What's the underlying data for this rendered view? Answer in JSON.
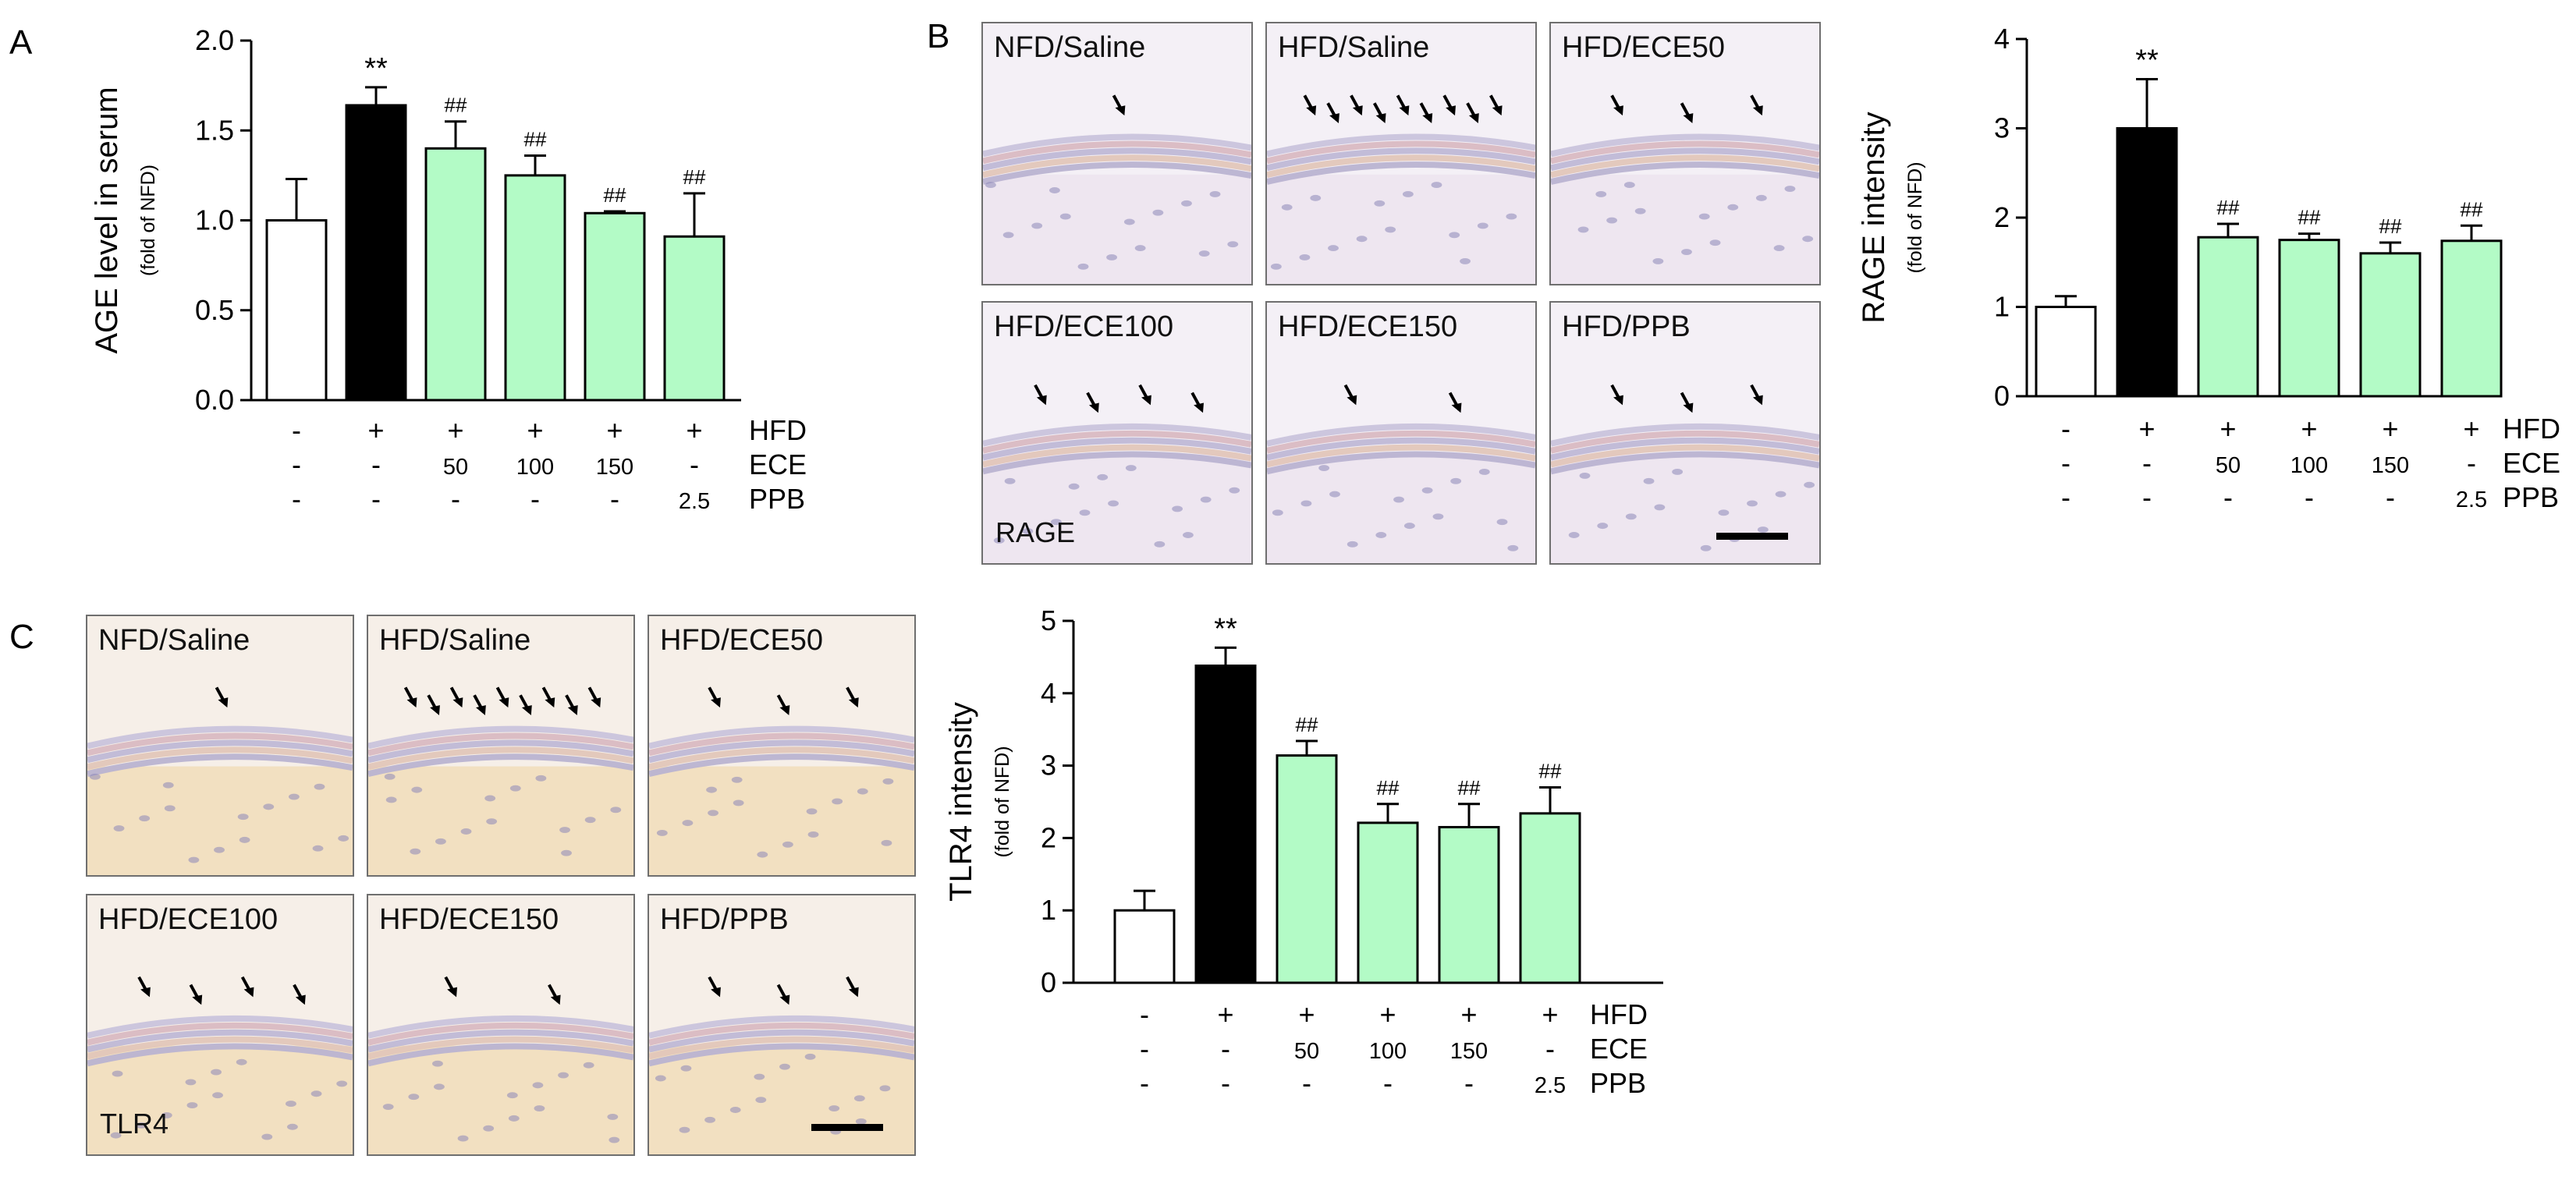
{
  "panels": {
    "a": "A",
    "b": "B",
    "c": "C"
  },
  "colors": {
    "nfd": "#ffffff",
    "hfd_saline": "#000000",
    "treatment": "#b3fbc6",
    "outline": "#000000"
  },
  "micrographs": {
    "rage": {
      "labels": [
        "NFD/Saline",
        "HFD/Saline",
        "HFD/ECE50",
        "HFD/ECE100",
        "HFD/ECE150",
        "HFD/PPB"
      ],
      "marker": "RAGE",
      "theme": "rage"
    },
    "tlr4": {
      "labels": [
        "NFD/Saline",
        "HFD/Saline",
        "HFD/ECE50",
        "HFD/ECE100",
        "HFD/ECE150",
        "HFD/PPB"
      ],
      "marker": "TLR4",
      "theme": "tlr4"
    }
  },
  "chart_data": [
    {
      "id": "age",
      "type": "bar",
      "title": "",
      "ylabel": "AGE level in serum",
      "ylabel_sub": "(fold of NFD)",
      "ylim": [
        0,
        2.0
      ],
      "yticks": [
        "0.0",
        "0.5",
        "1.0",
        "1.5",
        "2.0"
      ],
      "ytick_values": [
        0,
        0.5,
        1.0,
        1.5,
        2.0
      ],
      "categories": [
        "NFD/Saline",
        "HFD/Saline",
        "HFD/ECE50",
        "HFD/ECE100",
        "HFD/ECE150",
        "HFD/PPB"
      ],
      "values": [
        1.0,
        1.64,
        1.4,
        1.25,
        1.04,
        0.91
      ],
      "errors": [
        0.23,
        0.1,
        0.15,
        0.11,
        0.01,
        0.24
      ],
      "significance": [
        "",
        "**",
        "##",
        "##",
        "##",
        "##"
      ],
      "treatment_rows": [
        {
          "label": "HFD",
          "cells": [
            "-",
            "+",
            "+",
            "+",
            "+",
            "+"
          ]
        },
        {
          "label": "ECE",
          "cells": [
            "-",
            "-",
            "50",
            "100",
            "150",
            "-"
          ]
        },
        {
          "label": "PPB",
          "cells": [
            "-",
            "-",
            "-",
            "-",
            "-",
            "2.5"
          ]
        }
      ]
    },
    {
      "id": "rage",
      "type": "bar",
      "title": "",
      "ylabel": "RAGE intensity",
      "ylabel_sub": "(fold of NFD)",
      "ylim": [
        0,
        4
      ],
      "yticks": [
        "0",
        "1",
        "2",
        "3",
        "4"
      ],
      "ytick_values": [
        0,
        1,
        2,
        3,
        4
      ],
      "categories": [
        "NFD/Saline",
        "HFD/Saline",
        "HFD/ECE50",
        "HFD/ECE100",
        "HFD/ECE150",
        "HFD/PPB"
      ],
      "values": [
        1.0,
        3.0,
        1.78,
        1.75,
        1.6,
        1.74
      ],
      "errors": [
        0.12,
        0.55,
        0.15,
        0.07,
        0.12,
        0.17
      ],
      "significance": [
        "",
        "**",
        "##",
        "##",
        "##",
        "##"
      ],
      "treatment_rows": [
        {
          "label": "HFD",
          "cells": [
            "-",
            "+",
            "+",
            "+",
            "+",
            "+"
          ]
        },
        {
          "label": "ECE",
          "cells": [
            "-",
            "-",
            "50",
            "100",
            "150",
            "-"
          ]
        },
        {
          "label": "PPB",
          "cells": [
            "-",
            "-",
            "-",
            "-",
            "-",
            "2.5"
          ]
        }
      ]
    },
    {
      "id": "tlr4",
      "type": "bar",
      "title": "",
      "ylabel": "TLR4 intensity",
      "ylabel_sub": "(fold of NFD)",
      "ylim": [
        0,
        5
      ],
      "yticks": [
        "0",
        "1",
        "2",
        "3",
        "4",
        "5"
      ],
      "ytick_values": [
        0,
        1,
        2,
        3,
        4,
        5
      ],
      "categories": [
        "NFD/Saline",
        "HFD/Saline",
        "HFD/ECE50",
        "HFD/ECE100",
        "HFD/ECE150",
        "HFD/PPB"
      ],
      "values": [
        1.0,
        4.38,
        3.14,
        2.21,
        2.15,
        2.34
      ],
      "errors": [
        0.27,
        0.25,
        0.2,
        0.26,
        0.32,
        0.36
      ],
      "significance": [
        "",
        "**",
        "##",
        "##",
        "##",
        "##"
      ],
      "treatment_rows": [
        {
          "label": "HFD",
          "cells": [
            "-",
            "+",
            "+",
            "+",
            "+",
            "+"
          ]
        },
        {
          "label": "ECE",
          "cells": [
            "-",
            "-",
            "50",
            "100",
            "150",
            "-"
          ]
        },
        {
          "label": "PPB",
          "cells": [
            "-",
            "-",
            "-",
            "-",
            "-",
            "2.5"
          ]
        }
      ]
    }
  ]
}
